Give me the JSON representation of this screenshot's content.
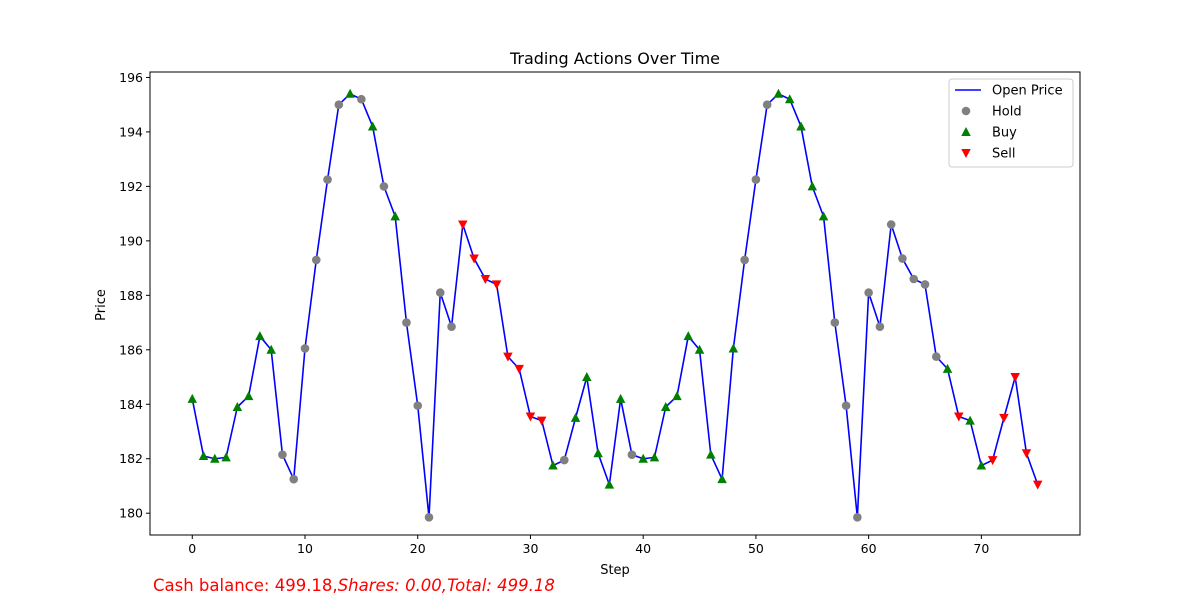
{
  "chart_data": {
    "type": "line",
    "title": "Trading Actions Over Time",
    "xlabel": "Step",
    "ylabel": "Price",
    "xlim": [
      -3.75,
      78.75
    ],
    "ylim": [
      179.2,
      196.2
    ],
    "xticks": [
      0,
      10,
      20,
      30,
      40,
      50,
      60,
      70
    ],
    "yticks": [
      180,
      182,
      184,
      186,
      188,
      190,
      192,
      194,
      196
    ],
    "legend_position": "top-right",
    "grid": false,
    "series": [
      {
        "name": "Open Price",
        "kind": "line",
        "color": "#0000ff"
      },
      {
        "name": "Hold",
        "kind": "scatter",
        "marker": "circle",
        "color": "#808080"
      },
      {
        "name": "Buy",
        "kind": "scatter",
        "marker": "triangle-up",
        "color": "#008000"
      },
      {
        "name": "Sell",
        "kind": "scatter",
        "marker": "triangle-down",
        "color": "#ff0000"
      }
    ],
    "points": [
      {
        "x": 0,
        "y": 184.2,
        "action": "Buy"
      },
      {
        "x": 1,
        "y": 182.1,
        "action": "Buy"
      },
      {
        "x": 2,
        "y": 182.0,
        "action": "Buy"
      },
      {
        "x": 3,
        "y": 182.05,
        "action": "Buy"
      },
      {
        "x": 4,
        "y": 183.9,
        "action": "Buy"
      },
      {
        "x": 5,
        "y": 184.3,
        "action": "Buy"
      },
      {
        "x": 6,
        "y": 186.5,
        "action": "Buy"
      },
      {
        "x": 7,
        "y": 186.0,
        "action": "Buy"
      },
      {
        "x": 8,
        "y": 182.15,
        "action": "Hold"
      },
      {
        "x": 9,
        "y": 181.25,
        "action": "Hold"
      },
      {
        "x": 10,
        "y": 186.05,
        "action": "Hold"
      },
      {
        "x": 11,
        "y": 189.3,
        "action": "Hold"
      },
      {
        "x": 12,
        "y": 192.25,
        "action": "Hold"
      },
      {
        "x": 13,
        "y": 195.0,
        "action": "Hold"
      },
      {
        "x": 14,
        "y": 195.4,
        "action": "Buy"
      },
      {
        "x": 15,
        "y": 195.2,
        "action": "Hold"
      },
      {
        "x": 16,
        "y": 194.2,
        "action": "Buy"
      },
      {
        "x": 17,
        "y": 192.0,
        "action": "Hold"
      },
      {
        "x": 18,
        "y": 190.9,
        "action": "Buy"
      },
      {
        "x": 19,
        "y": 187.0,
        "action": "Hold"
      },
      {
        "x": 20,
        "y": 183.95,
        "action": "Hold"
      },
      {
        "x": 21,
        "y": 179.85,
        "action": "Hold"
      },
      {
        "x": 22,
        "y": 188.1,
        "action": "Hold"
      },
      {
        "x": 23,
        "y": 186.85,
        "action": "Hold"
      },
      {
        "x": 24,
        "y": 190.6,
        "action": "Sell"
      },
      {
        "x": 25,
        "y": 189.35,
        "action": "Sell"
      },
      {
        "x": 26,
        "y": 188.6,
        "action": "Sell"
      },
      {
        "x": 27,
        "y": 188.4,
        "action": "Sell"
      },
      {
        "x": 28,
        "y": 185.75,
        "action": "Sell"
      },
      {
        "x": 29,
        "y": 185.3,
        "action": "Sell"
      },
      {
        "x": 30,
        "y": 183.55,
        "action": "Sell"
      },
      {
        "x": 31,
        "y": 183.4,
        "action": "Sell"
      },
      {
        "x": 32,
        "y": 181.75,
        "action": "Buy"
      },
      {
        "x": 33,
        "y": 181.95,
        "action": "Hold"
      },
      {
        "x": 34,
        "y": 183.5,
        "action": "Buy"
      },
      {
        "x": 35,
        "y": 185.0,
        "action": "Buy"
      },
      {
        "x": 36,
        "y": 182.2,
        "action": "Buy"
      },
      {
        "x": 37,
        "y": 181.05,
        "action": "Buy"
      },
      {
        "x": 38,
        "y": 184.2,
        "action": "Buy"
      },
      {
        "x": 39,
        "y": 182.15,
        "action": "Hold"
      },
      {
        "x": 40,
        "y": 182.0,
        "action": "Buy"
      },
      {
        "x": 41,
        "y": 182.05,
        "action": "Buy"
      },
      {
        "x": 42,
        "y": 183.9,
        "action": "Buy"
      },
      {
        "x": 43,
        "y": 184.3,
        "action": "Buy"
      },
      {
        "x": 44,
        "y": 186.5,
        "action": "Buy"
      },
      {
        "x": 45,
        "y": 186.0,
        "action": "Buy"
      },
      {
        "x": 46,
        "y": 182.15,
        "action": "Buy"
      },
      {
        "x": 47,
        "y": 181.25,
        "action": "Buy"
      },
      {
        "x": 48,
        "y": 186.05,
        "action": "Buy"
      },
      {
        "x": 49,
        "y": 189.3,
        "action": "Hold"
      },
      {
        "x": 50,
        "y": 192.25,
        "action": "Hold"
      },
      {
        "x": 51,
        "y": 195.0,
        "action": "Hold"
      },
      {
        "x": 52,
        "y": 195.4,
        "action": "Buy"
      },
      {
        "x": 53,
        "y": 195.2,
        "action": "Buy"
      },
      {
        "x": 54,
        "y": 194.2,
        "action": "Buy"
      },
      {
        "x": 55,
        "y": 192.0,
        "action": "Buy"
      },
      {
        "x": 56,
        "y": 190.9,
        "action": "Buy"
      },
      {
        "x": 57,
        "y": 187.0,
        "action": "Hold"
      },
      {
        "x": 58,
        "y": 183.95,
        "action": "Hold"
      },
      {
        "x": 59,
        "y": 179.85,
        "action": "Hold"
      },
      {
        "x": 60,
        "y": 188.1,
        "action": "Hold"
      },
      {
        "x": 61,
        "y": 186.85,
        "action": "Hold"
      },
      {
        "x": 62,
        "y": 190.6,
        "action": "Hold"
      },
      {
        "x": 63,
        "y": 189.35,
        "action": "Hold"
      },
      {
        "x": 64,
        "y": 188.6,
        "action": "Hold"
      },
      {
        "x": 65,
        "y": 188.4,
        "action": "Hold"
      },
      {
        "x": 66,
        "y": 185.75,
        "action": "Hold"
      },
      {
        "x": 67,
        "y": 185.3,
        "action": "Buy"
      },
      {
        "x": 68,
        "y": 183.55,
        "action": "Sell"
      },
      {
        "x": 69,
        "y": 183.4,
        "action": "Buy"
      },
      {
        "x": 70,
        "y": 181.75,
        "action": "Buy"
      },
      {
        "x": 71,
        "y": 181.95,
        "action": "Sell"
      },
      {
        "x": 72,
        "y": 183.5,
        "action": "Sell"
      },
      {
        "x": 73,
        "y": 185.0,
        "action": "Sell"
      },
      {
        "x": 74,
        "y": 182.2,
        "action": "Sell"
      },
      {
        "x": 75,
        "y": 181.05,
        "action": "Sell"
      }
    ]
  },
  "footer": {
    "cash_label": "Cash balance: 499.18,",
    "shares_label": "Shares",
    "shares_value": ": 0.00,",
    "total_label": "Total",
    "total_value": ": 499.18"
  }
}
